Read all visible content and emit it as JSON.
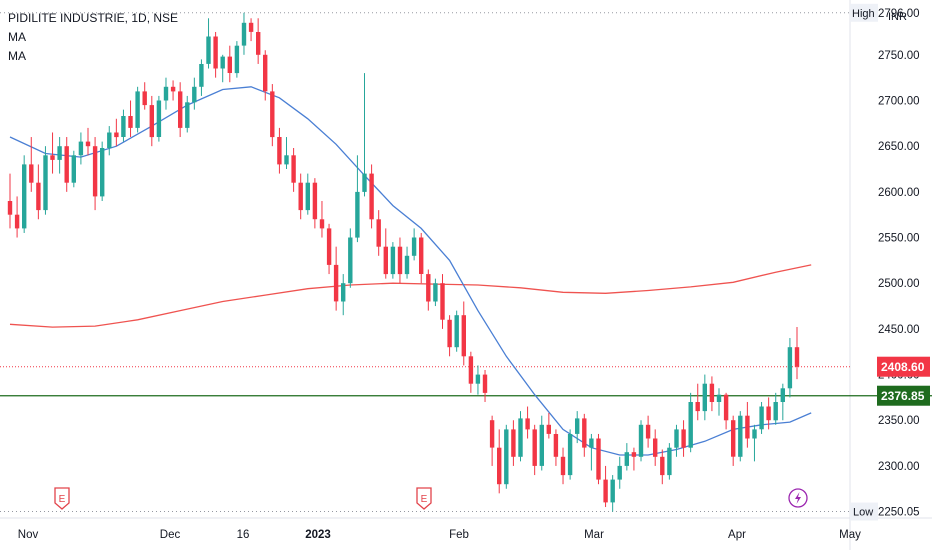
{
  "legend": {
    "title": "PIDILITE INDUSTRIE, 1D, NSE",
    "indicators": [
      "MA",
      "MA"
    ]
  },
  "colors": {
    "up": "#26a69a",
    "down": "#f23645",
    "ma_fast": "#4a7fd4",
    "ma_slow": "#ef5350",
    "support": "#1e6b1e",
    "last_price": "#f23645",
    "event": "#e2434a",
    "flash": "#9c27b0"
  },
  "chart_data": {
    "type": "candlestick",
    "currency": "INR",
    "ylim": [
      2243,
      2810
    ],
    "y_ticks": [
      2300,
      2350,
      2400,
      2450,
      2500,
      2550,
      2600,
      2650,
      2700,
      2750
    ],
    "x_ticks": [
      "Nov",
      "Dec",
      "16",
      "2023",
      "Feb",
      "Mar",
      "Apr",
      "May"
    ],
    "high": {
      "label": "High",
      "value": "2796.00"
    },
    "low": {
      "label": "Low",
      "value": "2250.05"
    },
    "last_price": {
      "label": "2408.60",
      "value": 2408.6
    },
    "support_level": {
      "label": "2376.85",
      "value": 2376.85
    },
    "events": [
      {
        "label": "E",
        "near": "Nov"
      },
      {
        "label": "E",
        "near": "late Jan 2023"
      }
    ],
    "flash_marker": {
      "near": "mid Apr"
    },
    "candles": [
      [
        2590,
        2620,
        2560,
        2575
      ],
      [
        2575,
        2595,
        2550,
        2560
      ],
      [
        2560,
        2640,
        2555,
        2630
      ],
      [
        2630,
        2660,
        2600,
        2610
      ],
      [
        2610,
        2630,
        2570,
        2580
      ],
      [
        2580,
        2650,
        2575,
        2640
      ],
      [
        2640,
        2665,
        2620,
        2635
      ],
      [
        2635,
        2660,
        2620,
        2650
      ],
      [
        2650,
        2660,
        2600,
        2610
      ],
      [
        2610,
        2645,
        2605,
        2640
      ],
      [
        2640,
        2665,
        2630,
        2655
      ],
      [
        2655,
        2670,
        2640,
        2650
      ],
      [
        2650,
        2660,
        2580,
        2595
      ],
      [
        2595,
        2655,
        2590,
        2648
      ],
      [
        2648,
        2672,
        2640,
        2665
      ],
      [
        2665,
        2680,
        2650,
        2660
      ],
      [
        2660,
        2690,
        2655,
        2683
      ],
      [
        2683,
        2700,
        2660,
        2670
      ],
      [
        2670,
        2715,
        2665,
        2710
      ],
      [
        2710,
        2720,
        2690,
        2695
      ],
      [
        2695,
        2705,
        2650,
        2660
      ],
      [
        2660,
        2705,
        2655,
        2700
      ],
      [
        2700,
        2725,
        2690,
        2715
      ],
      [
        2715,
        2722,
        2700,
        2710
      ],
      [
        2710,
        2720,
        2660,
        2670
      ],
      [
        2670,
        2705,
        2665,
        2698
      ],
      [
        2698,
        2725,
        2690,
        2715
      ],
      [
        2715,
        2745,
        2705,
        2740
      ],
      [
        2740,
        2790,
        2735,
        2770
      ],
      [
        2770,
        2775,
        2725,
        2735
      ],
      [
        2735,
        2750,
        2720,
        2748
      ],
      [
        2748,
        2760,
        2720,
        2730
      ],
      [
        2730,
        2765,
        2725,
        2760
      ],
      [
        2760,
        2796,
        2750,
        2785
      ],
      [
        2785,
        2790,
        2765,
        2775
      ],
      [
        2775,
        2790,
        2740,
        2750
      ],
      [
        2750,
        2755,
        2700,
        2710
      ],
      [
        2710,
        2718,
        2650,
        2660
      ],
      [
        2660,
        2670,
        2620,
        2630
      ],
      [
        2630,
        2660,
        2625,
        2640
      ],
      [
        2640,
        2648,
        2600,
        2610
      ],
      [
        2610,
        2620,
        2570,
        2580
      ],
      [
        2580,
        2620,
        2575,
        2610
      ],
      [
        2610,
        2615,
        2560,
        2570
      ],
      [
        2570,
        2590,
        2550,
        2560
      ],
      [
        2560,
        2565,
        2510,
        2520
      ],
      [
        2520,
        2540,
        2470,
        2480
      ],
      [
        2480,
        2510,
        2465,
        2500
      ],
      [
        2500,
        2560,
        2495,
        2550
      ],
      [
        2550,
        2640,
        2545,
        2600
      ],
      [
        2600,
        2730,
        2595,
        2620
      ],
      [
        2620,
        2630,
        2560,
        2570
      ],
      [
        2570,
        2580,
        2530,
        2540
      ],
      [
        2540,
        2560,
        2505,
        2510
      ],
      [
        2510,
        2545,
        2505,
        2540
      ],
      [
        2540,
        2550,
        2500,
        2510
      ],
      [
        2510,
        2540,
        2505,
        2530
      ],
      [
        2530,
        2560,
        2525,
        2550
      ],
      [
        2550,
        2555,
        2500,
        2510
      ],
      [
        2510,
        2515,
        2470,
        2480
      ],
      [
        2480,
        2505,
        2475,
        2500
      ],
      [
        2500,
        2510,
        2450,
        2460
      ],
      [
        2460,
        2465,
        2420,
        2430
      ],
      [
        2430,
        2470,
        2425,
        2465
      ],
      [
        2465,
        2480,
        2410,
        2420
      ],
      [
        2420,
        2425,
        2380,
        2390
      ],
      [
        2390,
        2410,
        2378,
        2400
      ],
      [
        2400,
        2405,
        2370,
        2380
      ],
      [
        2350,
        2355,
        2300,
        2320
      ],
      [
        2320,
        2340,
        2270,
        2280
      ],
      [
        2280,
        2345,
        2275,
        2340
      ],
      [
        2340,
        2350,
        2300,
        2310
      ],
      [
        2310,
        2360,
        2305,
        2352
      ],
      [
        2352,
        2365,
        2330,
        2340
      ],
      [
        2340,
        2345,
        2290,
        2300
      ],
      [
        2300,
        2355,
        2295,
        2345
      ],
      [
        2345,
        2358,
        2330,
        2335
      ],
      [
        2335,
        2340,
        2300,
        2310
      ],
      [
        2310,
        2320,
        2280,
        2290
      ],
      [
        2290,
        2340,
        2285,
        2335
      ],
      [
        2335,
        2360,
        2325,
        2352
      ],
      [
        2352,
        2357,
        2310,
        2320
      ],
      [
        2320,
        2335,
        2295,
        2330
      ],
      [
        2330,
        2335,
        2280,
        2285
      ],
      [
        2285,
        2300,
        2255,
        2260
      ],
      [
        2260,
        2290,
        2250,
        2285
      ],
      [
        2285,
        2310,
        2275,
        2300
      ],
      [
        2300,
        2325,
        2295,
        2315
      ],
      [
        2315,
        2320,
        2295,
        2310
      ],
      [
        2310,
        2350,
        2305,
        2345
      ],
      [
        2345,
        2355,
        2320,
        2330
      ],
      [
        2330,
        2340,
        2300,
        2310
      ],
      [
        2310,
        2318,
        2280,
        2290
      ],
      [
        2290,
        2325,
        2285,
        2320
      ],
      [
        2320,
        2345,
        2310,
        2340
      ],
      [
        2340,
        2350,
        2310,
        2320
      ],
      [
        2320,
        2380,
        2315,
        2370
      ],
      [
        2370,
        2390,
        2350,
        2360
      ],
      [
        2360,
        2400,
        2350,
        2390
      ],
      [
        2390,
        2398,
        2360,
        2370
      ],
      [
        2370,
        2385,
        2355,
        2378
      ],
      [
        2378,
        2380,
        2340,
        2350
      ],
      [
        2350,
        2355,
        2300,
        2310
      ],
      [
        2310,
        2360,
        2305,
        2355
      ],
      [
        2355,
        2370,
        2320,
        2330
      ],
      [
        2330,
        2345,
        2305,
        2340
      ],
      [
        2340,
        2370,
        2335,
        2365
      ],
      [
        2365,
        2375,
        2340,
        2350
      ],
      [
        2350,
        2380,
        2345,
        2370
      ],
      [
        2370,
        2390,
        2350,
        2385
      ],
      [
        2385,
        2440,
        2375,
        2430
      ],
      [
        2430,
        2452,
        2395,
        2408.6
      ]
    ],
    "ma_fast": [
      [
        0,
        2660
      ],
      [
        5,
        2642
      ],
      [
        10,
        2638
      ],
      [
        15,
        2650
      ],
      [
        20,
        2672
      ],
      [
        25,
        2695
      ],
      [
        30,
        2712
      ],
      [
        34,
        2715
      ],
      [
        38,
        2703
      ],
      [
        42,
        2680
      ],
      [
        46,
        2652
      ],
      [
        50,
        2618
      ],
      [
        54,
        2585
      ],
      [
        58,
        2560
      ],
      [
        62,
        2525
      ],
      [
        66,
        2470
      ],
      [
        70,
        2420
      ],
      [
        74,
        2378
      ],
      [
        78,
        2340
      ],
      [
        82,
        2320
      ],
      [
        86,
        2312
      ],
      [
        90,
        2312
      ],
      [
        94,
        2318
      ],
      [
        98,
        2327
      ],
      [
        102,
        2340
      ],
      [
        106,
        2345
      ],
      [
        110,
        2348
      ],
      [
        113,
        2358
      ]
    ],
    "ma_slow": [
      [
        0,
        2455
      ],
      [
        6,
        2452
      ],
      [
        12,
        2453
      ],
      [
        18,
        2460
      ],
      [
        24,
        2470
      ],
      [
        30,
        2480
      ],
      [
        36,
        2487
      ],
      [
        42,
        2494
      ],
      [
        48,
        2498
      ],
      [
        54,
        2500
      ],
      [
        60,
        2499
      ],
      [
        66,
        2498
      ],
      [
        72,
        2495
      ],
      [
        78,
        2490
      ],
      [
        84,
        2489
      ],
      [
        90,
        2492
      ],
      [
        96,
        2496
      ],
      [
        102,
        2501
      ],
      [
        108,
        2512
      ],
      [
        113,
        2520
      ]
    ]
  }
}
